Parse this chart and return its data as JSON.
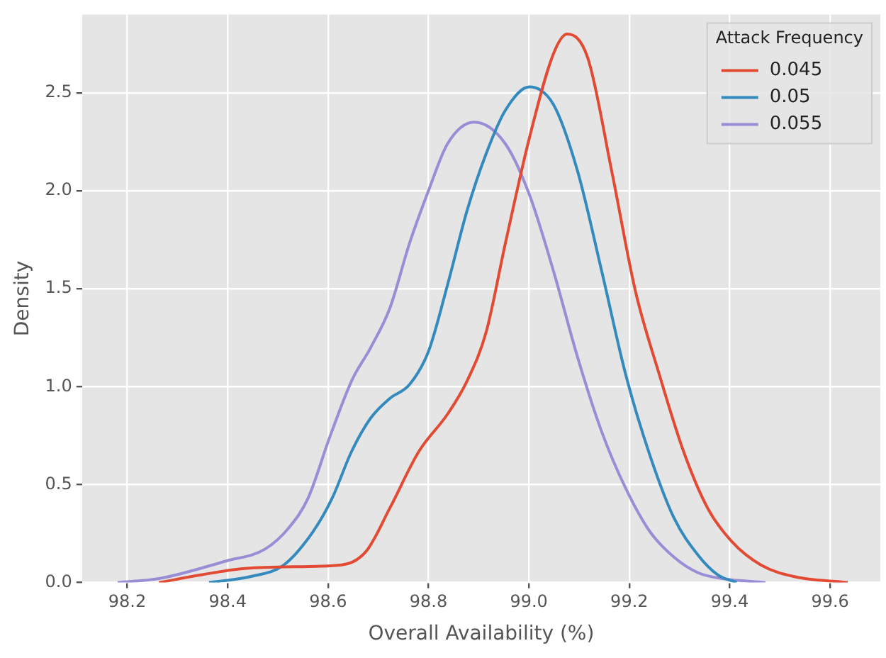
{
  "chart_data": {
    "type": "line",
    "xlabel": "Overall Availability (%)",
    "ylabel": "Density",
    "legend_title": "Attack Frequency",
    "legend": "top right",
    "grid": true,
    "marker": "none",
    "line_style": "solid",
    "xlim": [
      98.11,
      99.7
    ],
    "xticks": [
      {
        "value": 98.2,
        "label": "98.2"
      },
      {
        "value": 98.4,
        "label": "98.4"
      },
      {
        "value": 98.6,
        "label": "98.6"
      },
      {
        "value": 98.8,
        "label": "98.8"
      },
      {
        "value": 99.0,
        "label": "99.0"
      },
      {
        "value": 99.2,
        "label": "99.2"
      },
      {
        "value": 99.4,
        "label": "99.4"
      },
      {
        "value": 99.6,
        "label": "99.6"
      }
    ],
    "ylim": [
      0,
      2.9
    ],
    "yticks": [
      {
        "value": 0,
        "label": "0.0"
      },
      {
        "value": 0.5,
        "label": "0.5"
      },
      {
        "value": 1.0,
        "label": "1.0"
      },
      {
        "value": 1.5,
        "label": "1.5"
      },
      {
        "value": 2.0,
        "label": "2.0"
      },
      {
        "value": 2.5,
        "label": "2.5"
      }
    ],
    "series": [
      {
        "name": "0.045",
        "color": "#e24a33",
        "x": [
          98.263,
          98.349,
          98.426,
          98.512,
          98.627,
          98.676,
          98.723,
          98.781,
          98.838,
          98.877,
          98.915,
          98.953,
          99.001,
          99.049,
          99.076,
          99.117,
          99.165,
          99.212,
          99.26,
          99.308,
          99.356,
          99.404,
          99.462,
          99.529,
          99.635
        ],
        "values": [
          0,
          0.04,
          0.07,
          0.08,
          0.09,
          0.16,
          0.38,
          0.67,
          0.86,
          1.03,
          1.28,
          1.73,
          2.27,
          2.7,
          2.8,
          2.68,
          2.1,
          1.49,
          1.06,
          0.67,
          0.38,
          0.21,
          0.09,
          0.03,
          0
        ]
      },
      {
        "name": "0.05",
        "color": "#348abd",
        "x": [
          98.363,
          98.445,
          98.512,
          98.57,
          98.608,
          98.647,
          98.685,
          98.723,
          98.762,
          98.8,
          98.838,
          98.877,
          98.915,
          98.953,
          99.001,
          99.049,
          99.097,
          99.145,
          99.193,
          99.241,
          99.289,
          99.337,
          99.376,
          99.414
        ],
        "values": [
          0,
          0.03,
          0.09,
          0.26,
          0.43,
          0.67,
          0.84,
          0.94,
          1.01,
          1.18,
          1.52,
          1.9,
          2.19,
          2.41,
          2.53,
          2.44,
          2.1,
          1.59,
          1.06,
          0.65,
          0.33,
          0.14,
          0.04,
          0
        ]
      },
      {
        "name": "0.055",
        "color": "#988ed5",
        "x": [
          98.181,
          98.263,
          98.397,
          98.474,
          98.522,
          98.56,
          98.603,
          98.647,
          98.685,
          98.723,
          98.762,
          98.8,
          98.838,
          98.891,
          98.953,
          99.001,
          99.049,
          99.097,
          99.145,
          99.193,
          99.241,
          99.289,
          99.337,
          99.385,
          99.471
        ],
        "values": [
          0,
          0.02,
          0.11,
          0.17,
          0.28,
          0.43,
          0.74,
          1.03,
          1.2,
          1.4,
          1.73,
          2.0,
          2.24,
          2.35,
          2.24,
          1.98,
          1.59,
          1.15,
          0.77,
          0.48,
          0.26,
          0.13,
          0.05,
          0.02,
          0
        ]
      }
    ]
  }
}
